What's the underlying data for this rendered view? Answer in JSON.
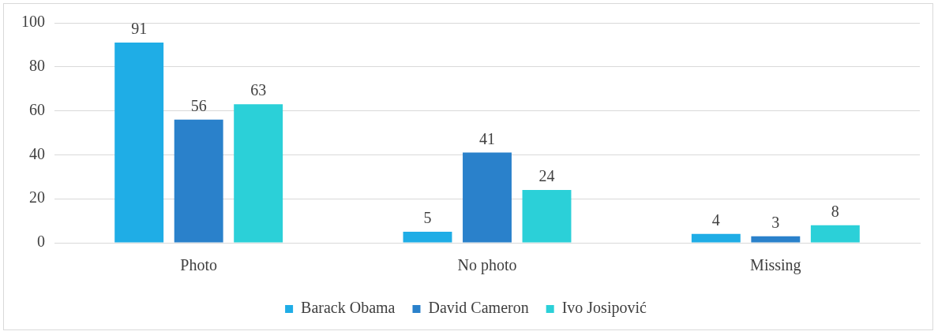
{
  "chart_data": {
    "type": "bar",
    "categories": [
      "Photo",
      "No photo",
      "Missing"
    ],
    "series": [
      {
        "name": "Barack Obama",
        "color": "#1fade6",
        "values": [
          91,
          5,
          4
        ]
      },
      {
        "name": "David Cameron",
        "color": "#2a81cb",
        "values": [
          56,
          41,
          3
        ]
      },
      {
        "name": "Ivo Josipović",
        "color": "#2bd0d8",
        "values": [
          63,
          24,
          8
        ]
      }
    ],
    "ylim": [
      0,
      100
    ],
    "yticks": [
      0,
      20,
      40,
      60,
      80,
      100
    ],
    "grid": "y",
    "legend": "bottom",
    "data_labels": true
  }
}
